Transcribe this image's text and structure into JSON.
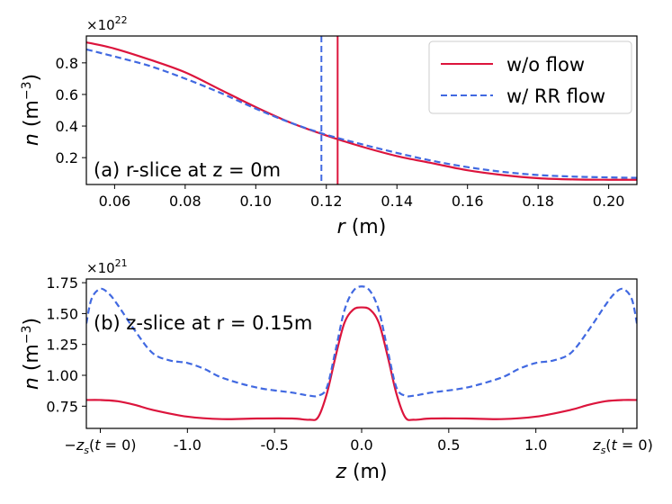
{
  "colors": {
    "red": "#DC143C",
    "blue": "#4169E1"
  },
  "chart_data": [
    {
      "type": "line",
      "panel": "top",
      "annotation": "(a) r-slice at z = 0m",
      "xlabel_var": "r",
      "xlabel_unit": " (m)",
      "ylabel_var": "n",
      "ylabel_unit": " (m",
      "ylabel_exp": "−3",
      "y_offset_base": "×10",
      "y_offset_exp": "22",
      "xlim": [
        0.052,
        0.208
      ],
      "ylim": [
        0.03,
        0.97
      ],
      "xticks": [
        0.06,
        0.08,
        0.1,
        0.12,
        0.14,
        0.16,
        0.18,
        0.2
      ],
      "xtick_labels": [
        "0.06",
        "0.08",
        "0.10",
        "0.12",
        "0.14",
        "0.16",
        "0.18",
        "0.20"
      ],
      "yticks": [
        0.2,
        0.4,
        0.6,
        0.8
      ],
      "ytick_labels": [
        "0.2",
        "0.4",
        "0.6",
        "0.8"
      ],
      "vlines": [
        {
          "x": 0.1232,
          "style": "solid",
          "series": "w/o flow"
        },
        {
          "x": 0.1186,
          "style": "dashed",
          "series": "w/ RR flow"
        }
      ],
      "legend": [
        "w/o flow",
        "w/ RR flow"
      ],
      "series": [
        {
          "name": "w/o flow",
          "style": "solid",
          "x": [
            0.052,
            0.06,
            0.07,
            0.08,
            0.09,
            0.1,
            0.11,
            0.12,
            0.13,
            0.14,
            0.15,
            0.16,
            0.17,
            0.18,
            0.19,
            0.2,
            0.208
          ],
          "y": [
            0.93,
            0.89,
            0.82,
            0.74,
            0.63,
            0.52,
            0.42,
            0.34,
            0.27,
            0.21,
            0.165,
            0.12,
            0.09,
            0.07,
            0.062,
            0.06,
            0.06
          ]
        },
        {
          "name": "w/ RR flow",
          "style": "dashed",
          "x": [
            0.052,
            0.06,
            0.07,
            0.08,
            0.09,
            0.1,
            0.11,
            0.12,
            0.13,
            0.14,
            0.15,
            0.16,
            0.17,
            0.18,
            0.19,
            0.2,
            0.208
          ],
          "y": [
            0.885,
            0.84,
            0.78,
            0.7,
            0.61,
            0.51,
            0.42,
            0.345,
            0.285,
            0.23,
            0.18,
            0.14,
            0.11,
            0.09,
            0.08,
            0.075,
            0.072
          ]
        }
      ]
    },
    {
      "type": "line",
      "panel": "bottom",
      "annotation": "(b) z-slice at r = 0.15m",
      "xlabel_var": "z",
      "xlabel_unit": " (m)",
      "ylabel_var": "n",
      "ylabel_unit": " (m",
      "ylabel_exp": "−3",
      "y_offset_base": "×10",
      "y_offset_exp": "21",
      "xlim": [
        -1.58,
        1.58
      ],
      "ylim": [
        0.57,
        1.78
      ],
      "xticks": [
        -1.5,
        -1.0,
        -0.5,
        0.0,
        0.5,
        1.0,
        1.5
      ],
      "xtick_labels": [
        "−zs(t = 0)",
        "-1.0",
        "-0.5",
        "0.0",
        "0.5",
        "1.0",
        "zs(t = 0)"
      ],
      "yticks": [
        0.75,
        1.0,
        1.25,
        1.5,
        1.75
      ],
      "ytick_labels": [
        "0.75",
        "1.00",
        "1.25",
        "1.50",
        "1.75"
      ],
      "series": [
        {
          "name": "w/o flow",
          "style": "solid",
          "x": [
            -1.58,
            -1.5,
            -1.4,
            -1.3,
            -1.2,
            -1.0,
            -0.8,
            -0.6,
            -0.4,
            -0.3,
            -0.25,
            -0.2,
            -0.15,
            -0.1,
            -0.05,
            0.0,
            0.05,
            0.1,
            0.15,
            0.2,
            0.25,
            0.3,
            0.4,
            0.6,
            0.8,
            1.0,
            1.2,
            1.3,
            1.4,
            1.5,
            1.58
          ],
          "y": [
            0.8,
            0.8,
            0.79,
            0.76,
            0.72,
            0.665,
            0.645,
            0.65,
            0.65,
            0.64,
            0.66,
            0.85,
            1.15,
            1.42,
            1.53,
            1.55,
            1.53,
            1.42,
            1.15,
            0.85,
            0.66,
            0.64,
            0.65,
            0.65,
            0.645,
            0.665,
            0.72,
            0.76,
            0.79,
            0.8,
            0.8
          ]
        },
        {
          "name": "w/ RR flow",
          "style": "dashed",
          "x": [
            -1.58,
            -1.55,
            -1.5,
            -1.45,
            -1.4,
            -1.3,
            -1.2,
            -1.1,
            -1.0,
            -0.9,
            -0.8,
            -0.6,
            -0.4,
            -0.3,
            -0.25,
            -0.2,
            -0.15,
            -0.1,
            -0.05,
            0.0,
            0.05,
            0.1,
            0.15,
            0.2,
            0.25,
            0.3,
            0.4,
            0.6,
            0.8,
            0.9,
            1.0,
            1.1,
            1.2,
            1.3,
            1.4,
            1.45,
            1.5,
            1.55,
            1.58
          ],
          "y": [
            1.42,
            1.62,
            1.7,
            1.66,
            1.57,
            1.36,
            1.18,
            1.12,
            1.1,
            1.05,
            0.98,
            0.9,
            0.86,
            0.835,
            0.835,
            0.9,
            1.2,
            1.52,
            1.68,
            1.72,
            1.68,
            1.52,
            1.2,
            0.9,
            0.835,
            0.835,
            0.86,
            0.9,
            0.98,
            1.05,
            1.1,
            1.12,
            1.18,
            1.36,
            1.57,
            1.66,
            1.7,
            1.62,
            1.42
          ]
        }
      ]
    }
  ]
}
